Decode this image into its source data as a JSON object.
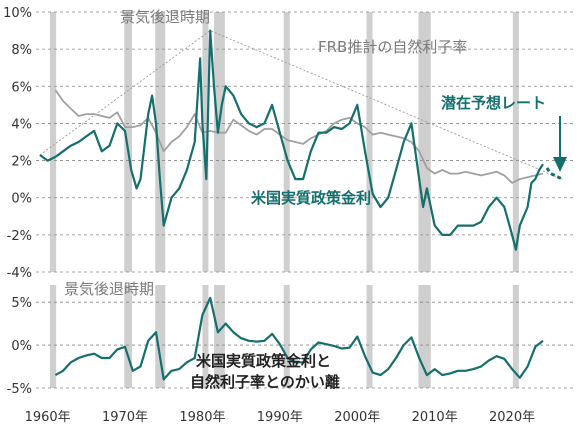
{
  "chart_data": [
    {
      "type": "line",
      "ylim": [
        -4,
        10
      ],
      "yticks": [
        -4,
        -2,
        0,
        2,
        4,
        6,
        8,
        10
      ],
      "ytick_labels": [
        "-4%",
        "-2%",
        "0%",
        "2%",
        "4%",
        "6%",
        "8%",
        "10%"
      ],
      "xlim": [
        1958.5,
        2028
      ],
      "recession_label": "景気後退時期",
      "annotations": {
        "frb": "FRB推計の自然利子率",
        "forecast": "潜在予想レート",
        "real_rate": "米国実質政策金利"
      },
      "recessions": [
        [
          1960.3,
          1961.1
        ],
        [
          1969.9,
          1970.9
        ],
        [
          1973.9,
          1975.2
        ],
        [
          1980.0,
          1980.5
        ],
        [
          1981.5,
          1982.9
        ],
        [
          1990.5,
          1991.2
        ],
        [
          2001.2,
          2001.9
        ],
        [
          2007.9,
          2009.5
        ],
        [
          2020.1,
          2020.4
        ]
      ],
      "series": [
        {
          "name": "米国実質政策金利",
          "color": "#156f6d",
          "x": [
            1959,
            1960,
            1961,
            1962,
            1963,
            1964,
            1965,
            1966,
            1967,
            1968,
            1969,
            1970,
            1970.8,
            1971.5,
            1972,
            1973,
            1973.5,
            1974,
            1974.5,
            1975,
            1976,
            1977,
            1978,
            1979,
            1979.7,
            1980,
            1980.5,
            1981,
            1981.5,
            1982,
            1982.5,
            1983,
            1984,
            1985,
            1986,
            1987,
            1988,
            1989,
            1990,
            1991,
            1992,
            1993,
            1994,
            1995,
            1996,
            1997,
            1998,
            1999,
            2000,
            2001,
            2002,
            2003,
            2004,
            2005,
            2006,
            2007,
            2008,
            2008.5,
            2009,
            2010,
            2011,
            2012,
            2013,
            2014,
            2015,
            2016,
            2017,
            2018,
            2019,
            2020,
            2020.5,
            2021,
            2022,
            2022.5,
            2023,
            2023.5,
            2024
          ],
          "values": [
            2.3,
            2.0,
            2.2,
            2.5,
            2.8,
            3.0,
            3.3,
            3.6,
            2.5,
            2.8,
            4.0,
            3.6,
            1.5,
            0.5,
            1.0,
            4.5,
            5.5,
            4.0,
            1.0,
            -1.5,
            0.0,
            0.5,
            1.5,
            3.0,
            7.5,
            4.0,
            1.0,
            9.0,
            6.0,
            3.5,
            5.0,
            6.0,
            5.5,
            4.5,
            4.0,
            3.8,
            4.0,
            5.0,
            3.5,
            2.0,
            1.0,
            1.0,
            2.5,
            3.5,
            3.5,
            3.8,
            3.7,
            4.0,
            5.0,
            2.5,
            0.2,
            -0.5,
            0.0,
            1.5,
            3.0,
            4.0,
            1.0,
            -0.5,
            0.5,
            -1.5,
            -2.0,
            -2.0,
            -1.5,
            -1.5,
            -1.5,
            -1.3,
            -0.5,
            0.0,
            -0.5,
            -2.0,
            -2.8,
            -1.5,
            -0.5,
            0.8,
            1.0,
            1.5,
            1.8
          ]
        },
        {
          "name": "FRB推計の自然利子率",
          "color": "#a0a0a0",
          "x": [
            1961,
            1962,
            1963,
            1964,
            1965,
            1966,
            1967,
            1968,
            1969,
            1970,
            1971,
            1972,
            1973,
            1974,
            1975,
            1976,
            1977,
            1978,
            1979,
            1980,
            1981,
            1982,
            1983,
            1984,
            1985,
            1986,
            1987,
            1988,
            1989,
            1990,
            1991,
            1992,
            1993,
            1994,
            1995,
            1996,
            1997,
            1998,
            1999,
            2000,
            2001,
            2002,
            2003,
            2004,
            2005,
            2006,
            2007,
            2008,
            2009,
            2010,
            2011,
            2012,
            2013,
            2014,
            2015,
            2016,
            2017,
            2018,
            2019,
            2020,
            2021,
            2022,
            2023,
            2024
          ],
          "values": [
            5.8,
            5.2,
            4.8,
            4.4,
            4.5,
            4.5,
            4.4,
            4.3,
            4.6,
            3.8,
            3.8,
            3.9,
            4.3,
            3.5,
            2.5,
            3.0,
            3.3,
            3.8,
            4.5,
            3.5,
            3.6,
            3.5,
            3.5,
            4.2,
            3.9,
            3.6,
            3.4,
            3.7,
            3.7,
            3.4,
            3.1,
            3.0,
            2.9,
            3.2,
            3.4,
            3.6,
            4.0,
            4.2,
            4.3,
            4.0,
            3.8,
            3.4,
            3.5,
            3.4,
            3.3,
            3.2,
            3.0,
            2.5,
            1.6,
            1.3,
            1.5,
            1.3,
            1.3,
            1.4,
            1.3,
            1.2,
            1.3,
            1.4,
            1.2,
            0.8,
            1.0,
            1.1,
            1.2,
            1.3
          ]
        },
        {
          "name": "潜在予想レート",
          "color": "#156f6d",
          "x": [
            2024.5,
            2025,
            2025.5,
            2026,
            2026.5
          ],
          "values": [
            1.6,
            1.3,
            1.2,
            1.1,
            1.0
          ]
        }
      ]
    },
    {
      "type": "line",
      "ylim": [
        -5,
        7
      ],
      "yticks": [
        -5,
        0,
        5
      ],
      "ytick_labels": [
        "-5%",
        "0%",
        "5%"
      ],
      "xlim": [
        1958.5,
        2028
      ],
      "xticks": [
        1960,
        1970,
        1980,
        1990,
        2000,
        2010,
        2020
      ],
      "xtick_labels": [
        "1960年",
        "1970年",
        "1980年",
        "1990年",
        "2000年",
        "2010年",
        "2020年"
      ],
      "recession_label": "景気後退時期",
      "annotation": [
        "米国実質政策金利と",
        "自然利子率とのかい離"
      ],
      "series": [
        {
          "name": "米国実質政策金利と自然利子率とのかい離",
          "color": "#156f6d",
          "x": [
            1961,
            1962,
            1963,
            1964,
            1965,
            1966,
            1967,
            1968,
            1969,
            1970,
            1971,
            1972,
            1973,
            1974,
            1975,
            1976,
            1977,
            1978,
            1979,
            1980,
            1981,
            1982,
            1983,
            1984,
            1985,
            1986,
            1987,
            1988,
            1989,
            1990,
            1991,
            1992,
            1993,
            1994,
            1995,
            1996,
            1997,
            1998,
            1999,
            2000,
            2001,
            2002,
            2003,
            2004,
            2005,
            2006,
            2007,
            2008,
            2009,
            2010,
            2011,
            2012,
            2013,
            2014,
            2015,
            2016,
            2017,
            2018,
            2019,
            2020,
            2021,
            2022,
            2023,
            2024
          ],
          "values": [
            -3.5,
            -3.0,
            -2.0,
            -1.5,
            -1.2,
            -1.0,
            -1.5,
            -1.5,
            -0.5,
            -0.2,
            -3.0,
            -2.5,
            0.5,
            1.5,
            -4.0,
            -3.0,
            -2.8,
            -2.0,
            -1.5,
            3.5,
            5.5,
            1.5,
            2.5,
            1.5,
            0.8,
            0.5,
            0.4,
            0.5,
            1.3,
            0.1,
            -1.5,
            -2.0,
            -2.0,
            -0.5,
            0.3,
            0.1,
            -0.1,
            -0.4,
            -0.3,
            1.0,
            -1.3,
            -3.2,
            -3.5,
            -2.8,
            -1.5,
            0.0,
            0.9,
            -1.5,
            -3.5,
            -2.8,
            -3.5,
            -3.3,
            -3.0,
            -3.0,
            -2.8,
            -2.5,
            -1.8,
            -1.3,
            -1.6,
            -2.8,
            -3.8,
            -2.5,
            -0.2,
            0.5
          ]
        }
      ]
    }
  ]
}
